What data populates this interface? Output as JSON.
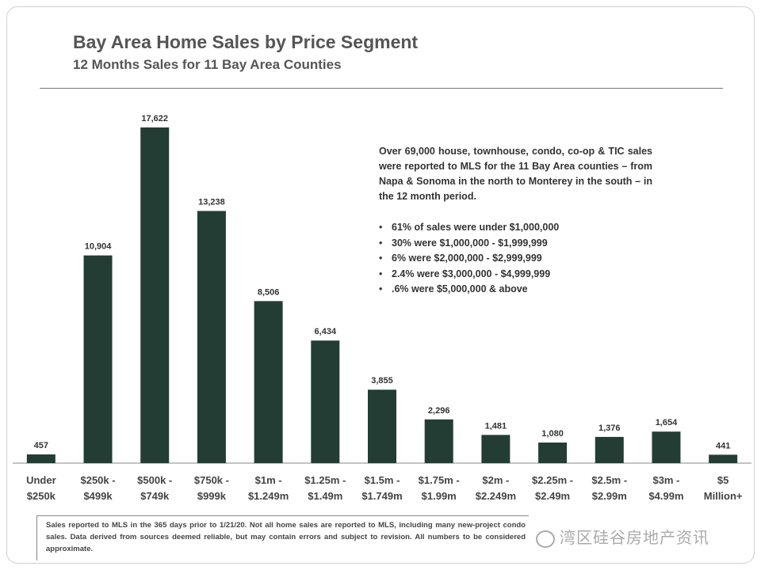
{
  "title": "Bay Area Home Sales by Price Segment",
  "subtitle": "12 Months  Sales for 11 Bay Area Counties",
  "note": "Over 69,000 house, townhouse, condo, co-op & TIC sales were reported to MLS for the 11 Bay Area counties – from Napa & Sonoma in the north to Monterey in the south – in the 12 month period.",
  "bullets": [
    "61% of sales were under $1,000,000",
    "30% were $1,000,000 - $1,999,999",
    "6% were $2,000,000 - $2,999,999",
    "2.4% were $3,000,000 - $4,999,999",
    ".6% were $5,000,000 & above"
  ],
  "footnote": "Sales reported to MLS in the 365 days prior to 1/21/20. Not all home sales are reported to MLS, including many new-project condo sales. Data derived from sources deemed reliable, but may contain errors and subject to revision. All numbers to be considered approximate.",
  "watermark": "湾区硅谷房地产资讯",
  "colors": {
    "bar": "#233d34"
  },
  "chart_data": {
    "type": "bar",
    "title": "Bay Area Home Sales by Price Segment",
    "categories": [
      [
        "Under",
        "$250k"
      ],
      [
        "$250k -",
        "$499k"
      ],
      [
        "$500k -",
        "$749k"
      ],
      [
        "$750k -",
        "$999k"
      ],
      [
        "$1m -",
        "$1.249m"
      ],
      [
        "$1.25m -",
        "$1.49m"
      ],
      [
        "$1.5m -",
        "$1.749m"
      ],
      [
        "$1.75m -",
        "$1.99m"
      ],
      [
        "$2m -",
        "$2.249m"
      ],
      [
        "$2.25m -",
        "$2.49m"
      ],
      [
        "$2.5m -",
        "$2.99m"
      ],
      [
        "$3m -",
        "$4.99m"
      ],
      [
        "$5",
        "Million+"
      ]
    ],
    "values": [
      457,
      10904,
      17622,
      13238,
      8506,
      6434,
      3855,
      2296,
      1481,
      1080,
      1376,
      1654,
      441
    ],
    "value_labels": [
      "457",
      "10,904",
      "17,622",
      "13,238",
      "8,506",
      "6,434",
      "3,855",
      "2,296",
      "1,481",
      "1,080",
      "1,376",
      "1,654",
      "441"
    ],
    "xlabel": "",
    "ylabel": "",
    "ylim": [
      0,
      18000
    ],
    "grid": false
  }
}
